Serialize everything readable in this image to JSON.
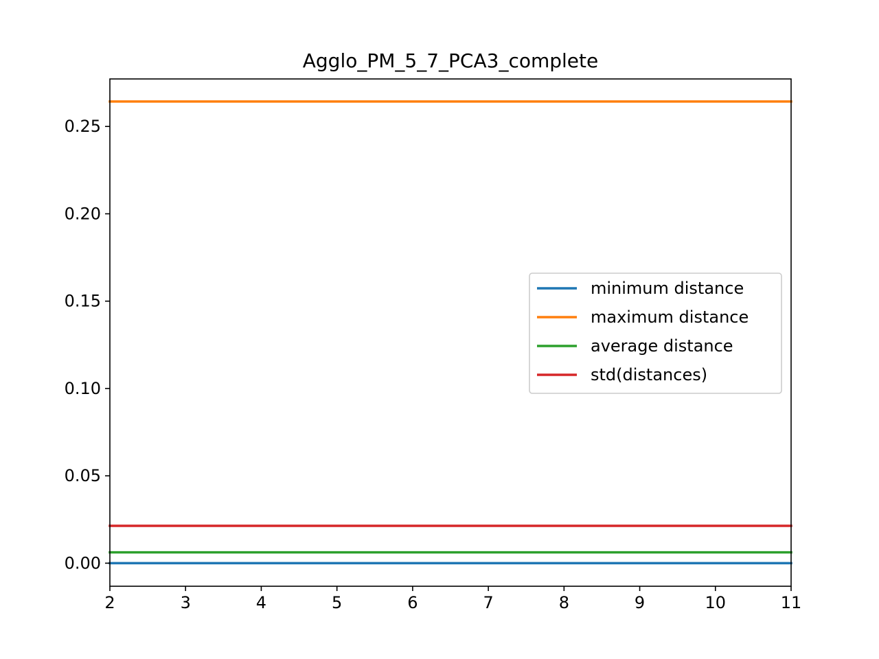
{
  "chart_data": {
    "type": "line",
    "title": "Agglo_PM_5_7_PCA3_complete",
    "xlabel": "",
    "ylabel": "",
    "x": [
      2,
      3,
      4,
      5,
      6,
      7,
      8,
      9,
      10,
      11
    ],
    "xlim": [
      2,
      11
    ],
    "ylim": [
      -0.0132,
      0.2772
    ],
    "xticks": [
      2,
      3,
      4,
      5,
      6,
      7,
      8,
      9,
      10,
      11
    ],
    "xtick_labels": [
      "2",
      "3",
      "4",
      "5",
      "6",
      "7",
      "8",
      "9",
      "10",
      "11"
    ],
    "yticks": [
      0.0,
      0.05,
      0.1,
      0.15,
      0.2,
      0.25
    ],
    "ytick_labels": [
      "0.00",
      "0.05",
      "0.10",
      "0.15",
      "0.20",
      "0.25"
    ],
    "grid": false,
    "legend_position": "center-right",
    "series": [
      {
        "name": "minimum distance",
        "color": "#1f77b4",
        "values": [
          0.0,
          0.0,
          0.0,
          0.0,
          0.0,
          0.0,
          0.0,
          0.0,
          0.0,
          0.0
        ]
      },
      {
        "name": "maximum distance",
        "color": "#ff7f0e",
        "values": [
          0.2643,
          0.2643,
          0.2643,
          0.2643,
          0.2643,
          0.2643,
          0.2643,
          0.2643,
          0.2643,
          0.2643
        ]
      },
      {
        "name": "average distance",
        "color": "#2ca02c",
        "values": [
          0.0062,
          0.0062,
          0.0062,
          0.0062,
          0.0062,
          0.0062,
          0.0062,
          0.0062,
          0.0062,
          0.0062
        ]
      },
      {
        "name": "std(distances)",
        "color": "#d62728",
        "values": [
          0.0214,
          0.0214,
          0.0214,
          0.0214,
          0.0214,
          0.0214,
          0.0214,
          0.0214,
          0.0214,
          0.0214
        ]
      }
    ]
  }
}
